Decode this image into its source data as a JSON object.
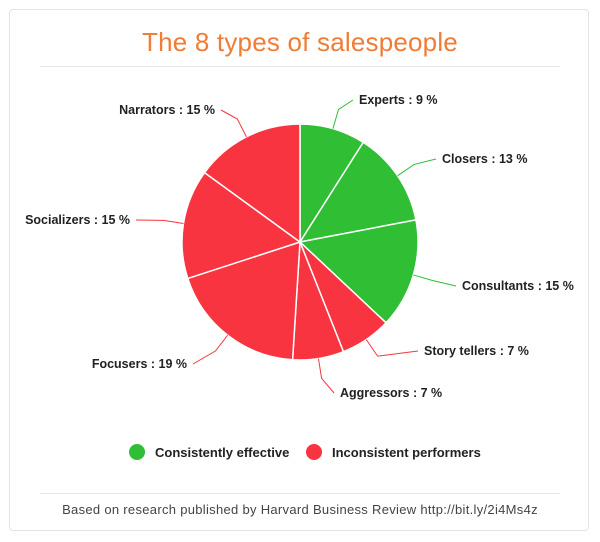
{
  "title": "The 8 types of salespeople",
  "source_note": "Based on research published by Harvard Business Review http://bit.ly/2i4Ms4z",
  "legend": [
    {
      "label": "Consistently effective",
      "color": "#2fbe34"
    },
    {
      "label": "Inconsistent performers",
      "color": "#f7343f"
    }
  ],
  "chart_data": {
    "type": "pie",
    "title": "The 8 types of salespeople",
    "value_unit": "%",
    "slices": [
      {
        "name": "Experts",
        "value": 9,
        "label": "Experts : 9 %",
        "group": "Consistently effective",
        "color": "#2fbe34"
      },
      {
        "name": "Closers",
        "value": 13,
        "label": "Closers : 13 %",
        "group": "Consistently effective",
        "color": "#2fbe34"
      },
      {
        "name": "Consultants",
        "value": 15,
        "label": "Consultants : 15 %",
        "group": "Consistently effective",
        "color": "#2fbe34"
      },
      {
        "name": "Story tellers",
        "value": 7,
        "label": "Story tellers : 7 %",
        "group": "Inconsistent performers",
        "color": "#f7343f"
      },
      {
        "name": "Aggressors",
        "value": 7,
        "label": "Aggressors : 7 %",
        "group": "Inconsistent performers",
        "color": "#f7343f"
      },
      {
        "name": "Focusers",
        "value": 19,
        "label": "Focusers : 19 %",
        "group": "Inconsistent performers",
        "color": "#f7343f"
      },
      {
        "name": "Socializers",
        "value": 15,
        "label": "Socializers : 15 %",
        "group": "Inconsistent performers",
        "color": "#f7343f"
      },
      {
        "name": "Narrators",
        "value": 15,
        "label": "Narrators : 15 %",
        "group": "Inconsistent performers",
        "color": "#f7343f"
      }
    ],
    "legend_placement": "bottom"
  }
}
